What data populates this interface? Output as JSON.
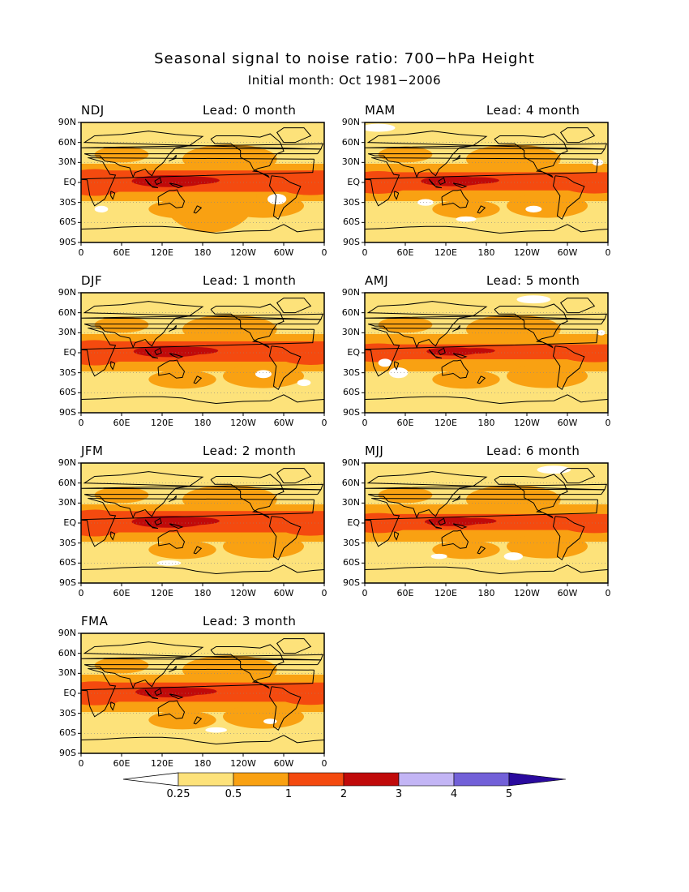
{
  "title": "Seasonal signal to noise ratio: 700−hPa Height",
  "subtitle": "Initial month: Oct 1981−2006",
  "lat_ticks": [
    "90N",
    "60N",
    "30N",
    "EQ",
    "30S",
    "60S",
    "90S"
  ],
  "lon_ticks": [
    "0",
    "60E",
    "120E",
    "180",
    "120W",
    "60W",
    "0"
  ],
  "panels": [
    {
      "season": "NDJ",
      "lead": "Lead: 0 month"
    },
    {
      "season": "MAM",
      "lead": "Lead: 4 month"
    },
    {
      "season": "DJF",
      "lead": "Lead: 1 month"
    },
    {
      "season": "AMJ",
      "lead": "Lead: 5 month"
    },
    {
      "season": "JFM",
      "lead": "Lead: 2 month"
    },
    {
      "season": "MJJ",
      "lead": "Lead: 6 month"
    },
    {
      "season": "FMA",
      "lead": "Lead: 3 month"
    }
  ],
  "legend": {
    "labels": [
      "0.25",
      "0.5",
      "1",
      "2",
      "3",
      "4",
      "5"
    ],
    "colors": [
      "#ffffff",
      "#fde27a",
      "#f9a112",
      "#f44a0f",
      "#c00a0a",
      "#c3b5f5",
      "#7260d8",
      "#2a0a9e"
    ]
  }
}
